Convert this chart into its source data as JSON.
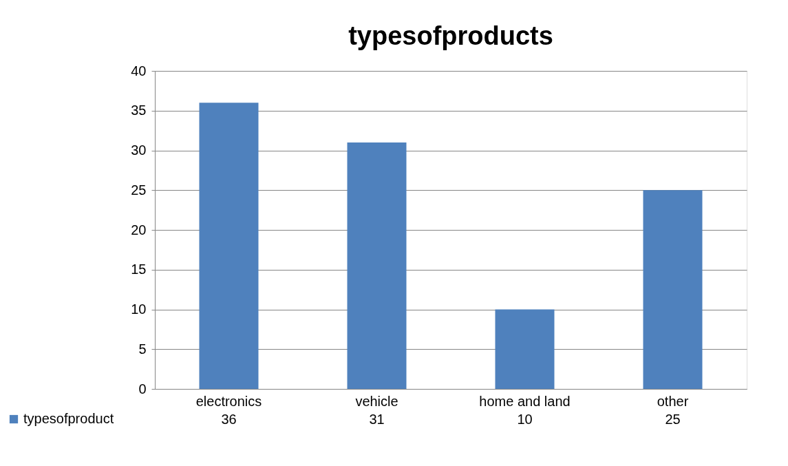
{
  "chart_data": {
    "type": "bar",
    "title": "typesofproducts",
    "categories": [
      "electronics",
      "vehicle",
      "home and land",
      "other"
    ],
    "series": [
      {
        "name": "typesofproduct",
        "color": "#4f81bd",
        "values": [
          36,
          31,
          10,
          25
        ]
      }
    ],
    "ylim": [
      0,
      40
    ],
    "yticks": [
      0,
      5,
      10,
      15,
      20,
      25,
      30,
      35,
      40
    ],
    "grid": "y",
    "legend": "bottom",
    "data_labels": true
  }
}
